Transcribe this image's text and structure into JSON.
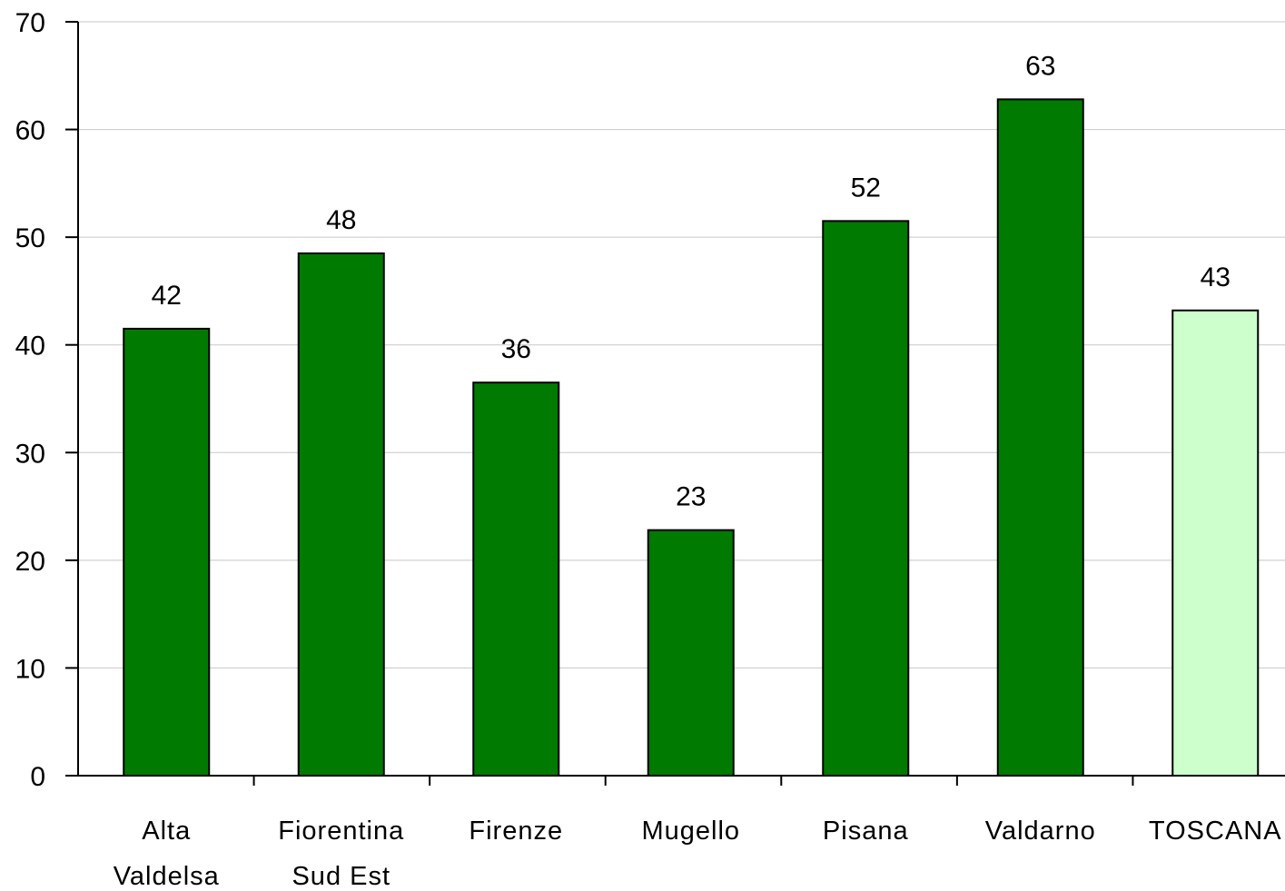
{
  "chart_data": {
    "type": "bar",
    "categories": [
      [
        "Alta",
        "Valdelsa"
      ],
      [
        "Fiorentina",
        "Sud Est"
      ],
      [
        "Firenze"
      ],
      [
        "Mugello"
      ],
      [
        "Pisana"
      ],
      [
        "Valdarno"
      ],
      [
        "TOSCANA"
      ]
    ],
    "values": [
      41.5,
      48.5,
      36.5,
      22.8,
      51.5,
      62.8,
      43.2
    ],
    "data_labels": [
      "42",
      "48",
      "36",
      "23",
      "52",
      "63",
      "43"
    ],
    "ylim": [
      0,
      70
    ],
    "yticks": [
      "0",
      "10",
      "20",
      "30",
      "40",
      "50",
      "60",
      "70"
    ],
    "ytick_values": [
      0,
      10,
      20,
      30,
      40,
      50,
      60,
      70
    ],
    "grid": true,
    "legend": "none",
    "colors": {
      "bar": "#007a00",
      "highlight_bar": "#ccffcc",
      "bar_border": "#000000",
      "grid": "#c8c8c8",
      "axis": "#000000"
    },
    "highlight_index": 6
  }
}
